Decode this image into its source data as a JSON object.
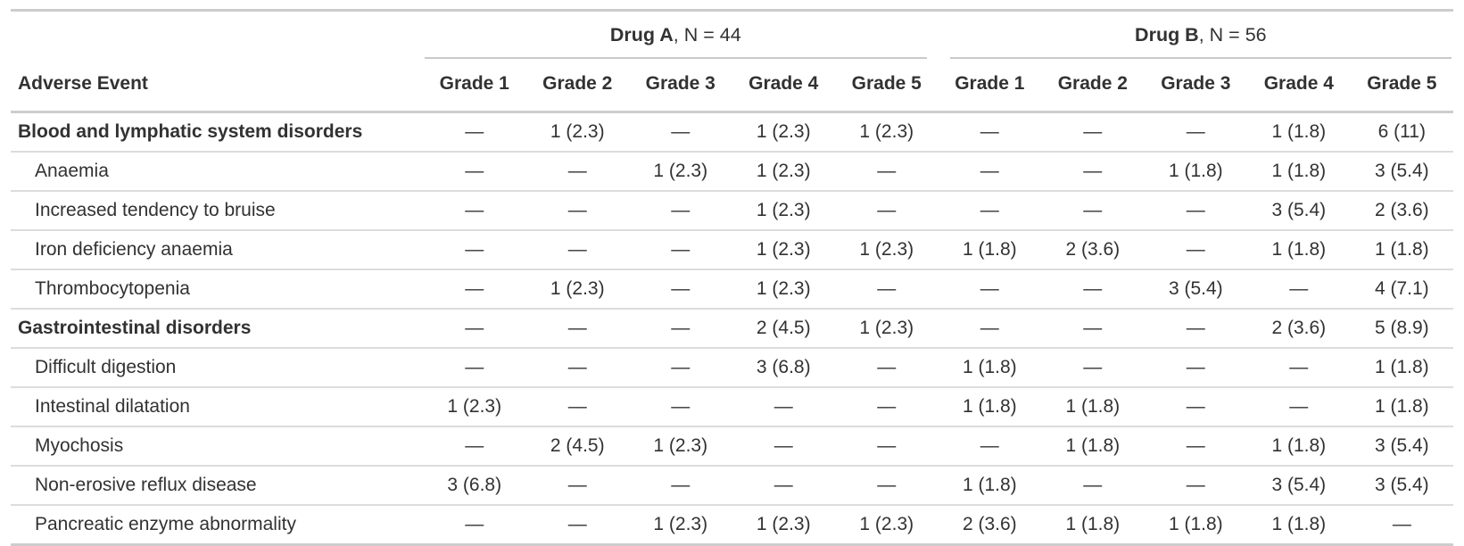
{
  "chart_data": {
    "type": "table",
    "row_header": "Adverse Event",
    "groups": [
      {
        "name": "Drug A",
        "n_suffix": ", N = 44"
      },
      {
        "name": "Drug B",
        "n_suffix": ", N = 56"
      }
    ],
    "grade_columns": [
      "Grade 1",
      "Grade 2",
      "Grade 3",
      "Grade 4",
      "Grade 5"
    ],
    "rows": [
      {
        "type": "group",
        "label": "Blood and lymphatic system disorders",
        "drug_a": [
          "—",
          "1 (2.3)",
          "—",
          "1 (2.3)",
          "1 (2.3)"
        ],
        "drug_b": [
          "—",
          "—",
          "—",
          "1 (1.8)",
          "6 (11)"
        ]
      },
      {
        "type": "event",
        "label": "Anaemia",
        "drug_a": [
          "—",
          "—",
          "1 (2.3)",
          "1 (2.3)",
          "—"
        ],
        "drug_b": [
          "—",
          "—",
          "1 (1.8)",
          "1 (1.8)",
          "3 (5.4)"
        ]
      },
      {
        "type": "event",
        "label": "Increased tendency to bruise",
        "drug_a": [
          "—",
          "—",
          "—",
          "1 (2.3)",
          "—"
        ],
        "drug_b": [
          "—",
          "—",
          "—",
          "3 (5.4)",
          "2 (3.6)"
        ]
      },
      {
        "type": "event",
        "label": "Iron deficiency anaemia",
        "drug_a": [
          "—",
          "—",
          "—",
          "1 (2.3)",
          "1 (2.3)"
        ],
        "drug_b": [
          "1 (1.8)",
          "2 (3.6)",
          "—",
          "1 (1.8)",
          "1 (1.8)"
        ]
      },
      {
        "type": "event",
        "label": "Thrombocytopenia",
        "drug_a": [
          "—",
          "1 (2.3)",
          "—",
          "1 (2.3)",
          "—"
        ],
        "drug_b": [
          "—",
          "—",
          "3 (5.4)",
          "—",
          "4 (7.1)"
        ]
      },
      {
        "type": "group",
        "label": "Gastrointestinal disorders",
        "drug_a": [
          "—",
          "—",
          "—",
          "2 (4.5)",
          "1 (2.3)"
        ],
        "drug_b": [
          "—",
          "—",
          "—",
          "2 (3.6)",
          "5 (8.9)"
        ]
      },
      {
        "type": "event",
        "label": "Difficult digestion",
        "drug_a": [
          "—",
          "—",
          "—",
          "3 (6.8)",
          "—"
        ],
        "drug_b": [
          "1 (1.8)",
          "—",
          "—",
          "—",
          "1 (1.8)"
        ]
      },
      {
        "type": "event",
        "label": "Intestinal dilatation",
        "drug_a": [
          "1 (2.3)",
          "—",
          "—",
          "—",
          "—"
        ],
        "drug_b": [
          "1 (1.8)",
          "1 (1.8)",
          "—",
          "—",
          "1 (1.8)"
        ]
      },
      {
        "type": "event",
        "label": "Myochosis",
        "drug_a": [
          "—",
          "2 (4.5)",
          "1 (2.3)",
          "—",
          "—"
        ],
        "drug_b": [
          "—",
          "1 (1.8)",
          "—",
          "1 (1.8)",
          "3 (5.4)"
        ]
      },
      {
        "type": "event",
        "label": "Non-erosive reflux disease",
        "drug_a": [
          "3 (6.8)",
          "—",
          "—",
          "—",
          "—"
        ],
        "drug_b": [
          "1 (1.8)",
          "—",
          "—",
          "3 (5.4)",
          "3 (5.4)"
        ]
      },
      {
        "type": "event",
        "label": "Pancreatic enzyme abnormality",
        "drug_a": [
          "—",
          "—",
          "1 (2.3)",
          "1 (2.3)",
          "1 (2.3)"
        ],
        "drug_b": [
          "2 (3.6)",
          "1 (1.8)",
          "1 (1.8)",
          "1 (1.8)",
          "—"
        ]
      }
    ]
  },
  "colors": {
    "text": "#323232",
    "rule_major": "#cdcdcd",
    "rule_minor": "#dcdcdc",
    "spanner_rule": "#c9c9c9",
    "background": "#ffffff"
  }
}
